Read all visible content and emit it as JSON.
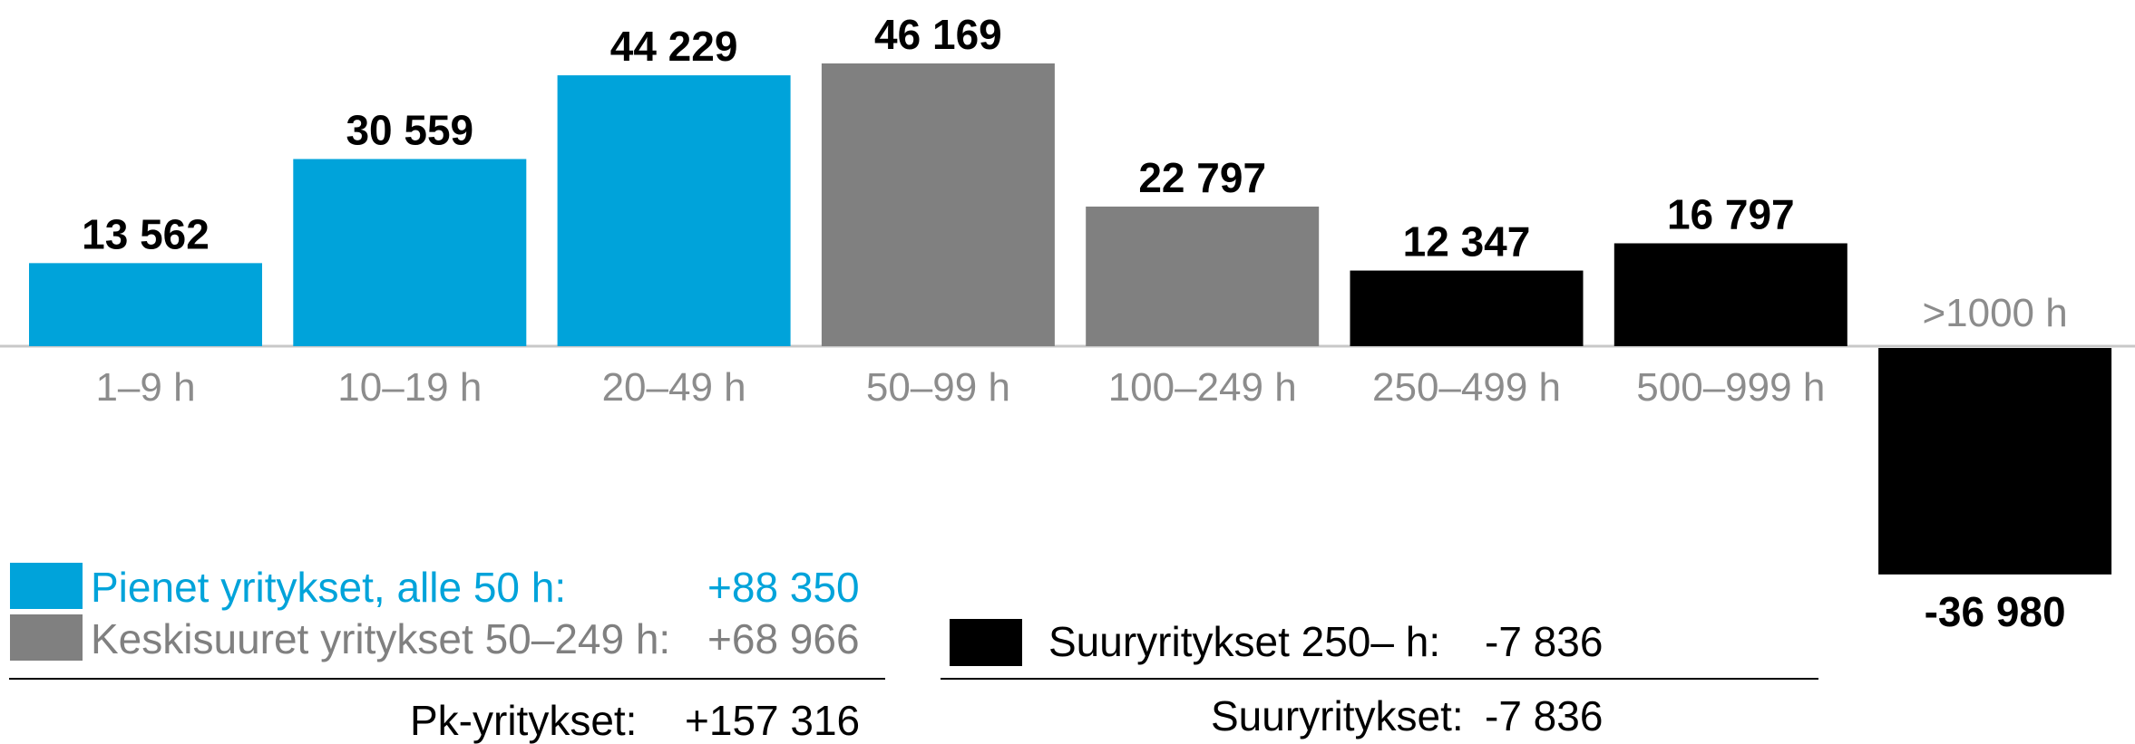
{
  "chart_data": {
    "type": "bar",
    "categories": [
      "1–9 h",
      "10–19 h",
      "20–49 h",
      "50–99 h",
      "100–249 h",
      "250–499 h",
      "500–999 h",
      ">1000 h"
    ],
    "values": [
      13562,
      30559,
      44229,
      46169,
      22797,
      12347,
      16797,
      -36980
    ],
    "value_labels": [
      "13 562",
      "30 559",
      "44 229",
      "46 169",
      "22 797",
      "12 347",
      "16 797",
      "-36 980"
    ],
    "bar_colors": [
      "#00a3da",
      "#00a3da",
      "#00a3da",
      "#808080",
      "#808080",
      "#000000",
      "#000000",
      "#000000"
    ],
    "ylim": [
      -36980,
      46169
    ],
    "grid": false,
    "axis_color": "#c8c8c8",
    "category_label_color": "#8c8c8c"
  },
  "legend": {
    "items": [
      {
        "label": "Pienet yritykset, alle 50 h:",
        "value": "+88 350",
        "color": "#00a3da",
        "text_color": "#00a3da"
      },
      {
        "label": "Keskisuuret yritykset 50–249 h:",
        "value": "+68 966",
        "color": "#808080",
        "text_color": "#808080"
      },
      {
        "label": "Suuryritykset 250– h:",
        "value": "-7 836",
        "color": "#000000",
        "text_color": "#000000"
      }
    ]
  },
  "summary": {
    "pk_label": "Pk-yritykset:",
    "pk_value": "+157 316",
    "large_label": "Suuryritykset:",
    "large_value": "-7 836"
  }
}
